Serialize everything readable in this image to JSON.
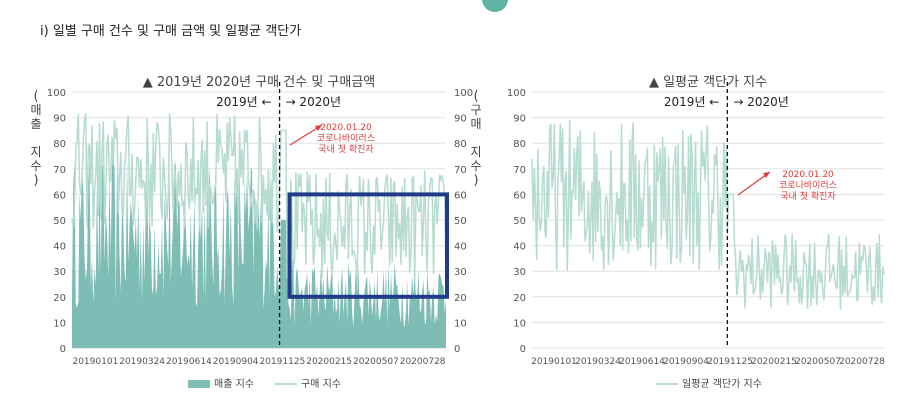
{
  "heading": "i) 일별 구매 건수 및 구매 금액 및 일평균 객단가",
  "colors": {
    "sales": "#7dbdb5",
    "purchase": "#b6dbd0",
    "unit_price": "#b6dbd0",
    "annotation": "#e03b3b",
    "highlight_box": "#1f3b8a",
    "grid": "#e2e2e2"
  },
  "chart_data": [
    {
      "type": "area",
      "title": "▲ 2019년 2020년 구매 건수 및 구매금액",
      "ylabel_left": "매출 지수",
      "ylabel_right": "구매 지수",
      "ylim": [
        0,
        100
      ],
      "yticks": [
        0,
        10,
        20,
        30,
        40,
        50,
        60,
        70,
        80,
        90,
        100
      ],
      "xtick_labels": [
        "20190101",
        "20190324",
        "20190614",
        "20190904",
        "20191125",
        "20200215",
        "20200507",
        "20200728"
      ],
      "period_left": "2019년 ←",
      "period_right": "→ 2020년",
      "annotation": {
        "date": "2020.01.20",
        "line1": "코로나바이러스",
        "line2": "국내 첫 확진자"
      },
      "legend": [
        "매출 지수",
        "구매 지수"
      ],
      "highlight_range": {
        "x_from": "2020.01",
        "x_to": "2020.09",
        "y_from": 20,
        "y_to": 60
      },
      "series": [
        {
          "name": "매출 지수",
          "type": "area",
          "value_range_2019": [
            15,
            75
          ],
          "value_range_2020": [
            8,
            35
          ]
        },
        {
          "name": "구매 지수",
          "type": "line",
          "value_range_2019": [
            45,
            92
          ],
          "value_range_2020": [
            25,
            70
          ]
        }
      ]
    },
    {
      "type": "line",
      "title": "▲ 일평균 객단가 지수",
      "ylim": [
        0,
        100
      ],
      "yticks": [
        0,
        10,
        20,
        30,
        40,
        50,
        60,
        70,
        80,
        90,
        100
      ],
      "xtick_labels": [
        "20190101",
        "20190324",
        "20190614",
        "20190904",
        "20191125",
        "20200215",
        "20200507",
        "20200728"
      ],
      "period_left": "2019년 ←",
      "period_right": "→ 2020년",
      "annotation": {
        "date": "2020.01.20",
        "line1": "코로나바이러스",
        "line2": "국내 첫 확진자"
      },
      "legend": [
        "일평균 객단가 지수"
      ],
      "series": [
        {
          "name": "일평균 객단가 지수",
          "value_range_2019": [
            30,
            90
          ],
          "value_range_2020": [
            15,
            45
          ]
        }
      ]
    }
  ]
}
